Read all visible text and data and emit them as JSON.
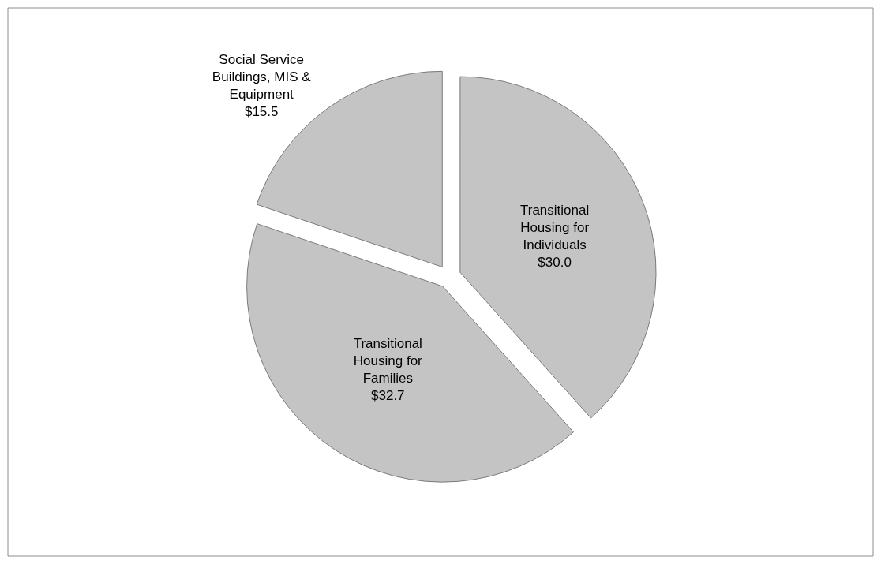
{
  "chart_data": {
    "type": "pie",
    "categories": [
      "Transitional Housing for Individuals",
      "Transitional Housing for Families",
      "Social Service Buildings, MIS & Equipment"
    ],
    "values": [
      30.0,
      32.7,
      15.5
    ],
    "value_labels": [
      "$30.0",
      "$32.7",
      "$15.5"
    ],
    "colors": [
      "#c4c4c4",
      "#c4c4c4",
      "#c4c4c4"
    ],
    "legend": false
  }
}
